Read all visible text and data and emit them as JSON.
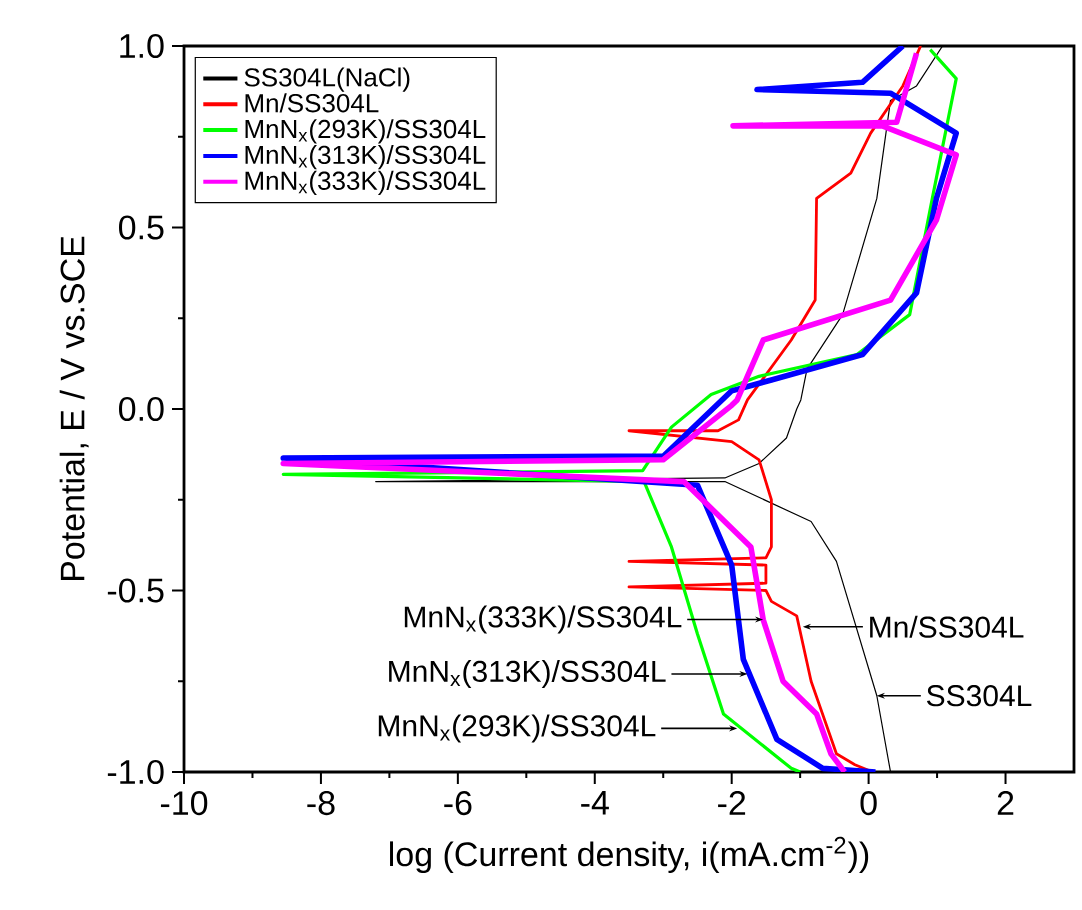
{
  "chart_data": {
    "type": "line",
    "xlabel": "log (Current density, i(mA.cm$^{-2}$))",
    "ylabel": "Potential, E / V vs.SCE",
    "xlim": [
      -10,
      3
    ],
    "ylim": [
      -1,
      1
    ],
    "xticks": [
      -10,
      -8,
      -6,
      -4,
      -2,
      0,
      2
    ],
    "yticks": [
      {
        "value": -1,
        "label": "-1.0"
      },
      {
        "value": -0.5,
        "label": "-0.5"
      },
      {
        "value": 0,
        "label": "0.0"
      },
      {
        "value": 0.5,
        "label": "0.5"
      },
      {
        "value": 1,
        "label": "1.0"
      }
    ],
    "legend": "top left",
    "series": [
      {
        "name": "SS304L(NaCl)",
        "color": "#000000",
        "x": [
          0.32,
          0.12,
          -0.47,
          -0.84,
          -2.1,
          -7.2,
          -2.1,
          -1.6,
          -1.2,
          -1.05,
          -0.99,
          -0.9,
          -0.38,
          0.12,
          0.32,
          0.7,
          1.08
        ],
        "values": [
          -1.0,
          -0.79,
          -0.42,
          -0.31,
          -0.2,
          -0.2,
          -0.19,
          -0.15,
          -0.08,
          0.0,
          0.025,
          0.11,
          0.26,
          0.58,
          0.85,
          0.89,
          1.0
        ]
      },
      {
        "name": "Mn/SS304L",
        "color": "#ff0000",
        "x": [
          0.06,
          -0.2,
          -0.47,
          -0.84,
          -1.05,
          -1.42,
          -1.5,
          -3.5,
          -1.5,
          -1.5,
          -3.5,
          -1.5,
          -1.42,
          -1.42,
          -1.6,
          -2.0,
          -3.5,
          -2.2,
          -1.9,
          -1.77,
          -1.13,
          -0.78,
          -0.76,
          -0.26,
          0.03,
          0.5,
          0.76
        ],
        "values": [
          -1.0,
          -0.98,
          -0.95,
          -0.75,
          -0.57,
          -0.53,
          -0.5,
          -0.49,
          -0.48,
          -0.43,
          -0.42,
          -0.41,
          -0.38,
          -0.25,
          -0.14,
          -0.09,
          -0.06,
          -0.06,
          -0.03,
          0.025,
          0.19,
          0.3,
          0.58,
          0.65,
          0.76,
          0.89,
          1.0
        ]
      },
      {
        "name": "MnN$_{x}$(293K)/SS304L",
        "color": "#00ff00",
        "x": [
          -1.0,
          -1.13,
          -2.12,
          -2.5,
          -2.88,
          -3.28,
          -8.55,
          -3.3,
          -2.88,
          -2.3,
          -1.6,
          -0.17,
          0.6,
          0.93,
          1.28,
          0.9
        ],
        "values": [
          -1.0,
          -0.99,
          -0.84,
          -0.62,
          -0.38,
          -0.2,
          -0.18,
          -0.17,
          -0.05,
          0.04,
          0.09,
          0.15,
          0.26,
          0.58,
          0.91,
          0.99
        ]
      },
      {
        "name": "MnN$_{x}$(313K)/SS304L",
        "color": "#0000ff",
        "x": [
          0.1,
          -0.67,
          -1.34,
          -1.83,
          -2.0,
          -2.5,
          -8.55,
          -3.0,
          -2.0,
          -1.42,
          -0.09,
          0.7,
          0.99,
          1.28,
          0.32,
          -1.63,
          -0.09,
          0.5
        ],
        "values": [
          -1.0,
          -0.99,
          -0.91,
          -0.69,
          -0.43,
          -0.21,
          -0.135,
          -0.13,
          0.05,
          0.08,
          0.15,
          0.32,
          0.58,
          0.76,
          0.87,
          0.88,
          0.9,
          1.0
        ]
      },
      {
        "name": "MnN$_{x}$(333K)/SS304L",
        "color": "#ff00ff",
        "x": [
          -0.35,
          -0.55,
          -0.76,
          -1.25,
          -1.54,
          -1.72,
          -2.7,
          -8.55,
          -3.0,
          -2.0,
          -1.92,
          -1.54,
          0.32,
          0.99,
          1.28,
          0.2,
          -1.98,
          0.41,
          0.7
        ],
        "values": [
          -1.0,
          -0.95,
          -0.84,
          -0.75,
          -0.58,
          -0.38,
          -0.2,
          -0.15,
          -0.14,
          0.01,
          0.025,
          0.19,
          0.3,
          0.52,
          0.7,
          0.78,
          0.78,
          0.79,
          0.98
        ]
      }
    ],
    "annotations": [
      {
        "text": "MnN$_{x}$(333K)/SS304L",
        "x": -1.54,
        "y": -0.58
      },
      {
        "text": "MnN$_{x}$(313K)/SS304L",
        "x": -1.77,
        "y": -0.73
      },
      {
        "text": "MnN$_{x}$(293K)/SS304L",
        "x": -1.92,
        "y": -0.88
      },
      {
        "text": "Mn/SS304L",
        "x": -0.96,
        "y": -0.6
      },
      {
        "text": "SS304L",
        "x": 0.12,
        "y": -0.79
      }
    ]
  }
}
